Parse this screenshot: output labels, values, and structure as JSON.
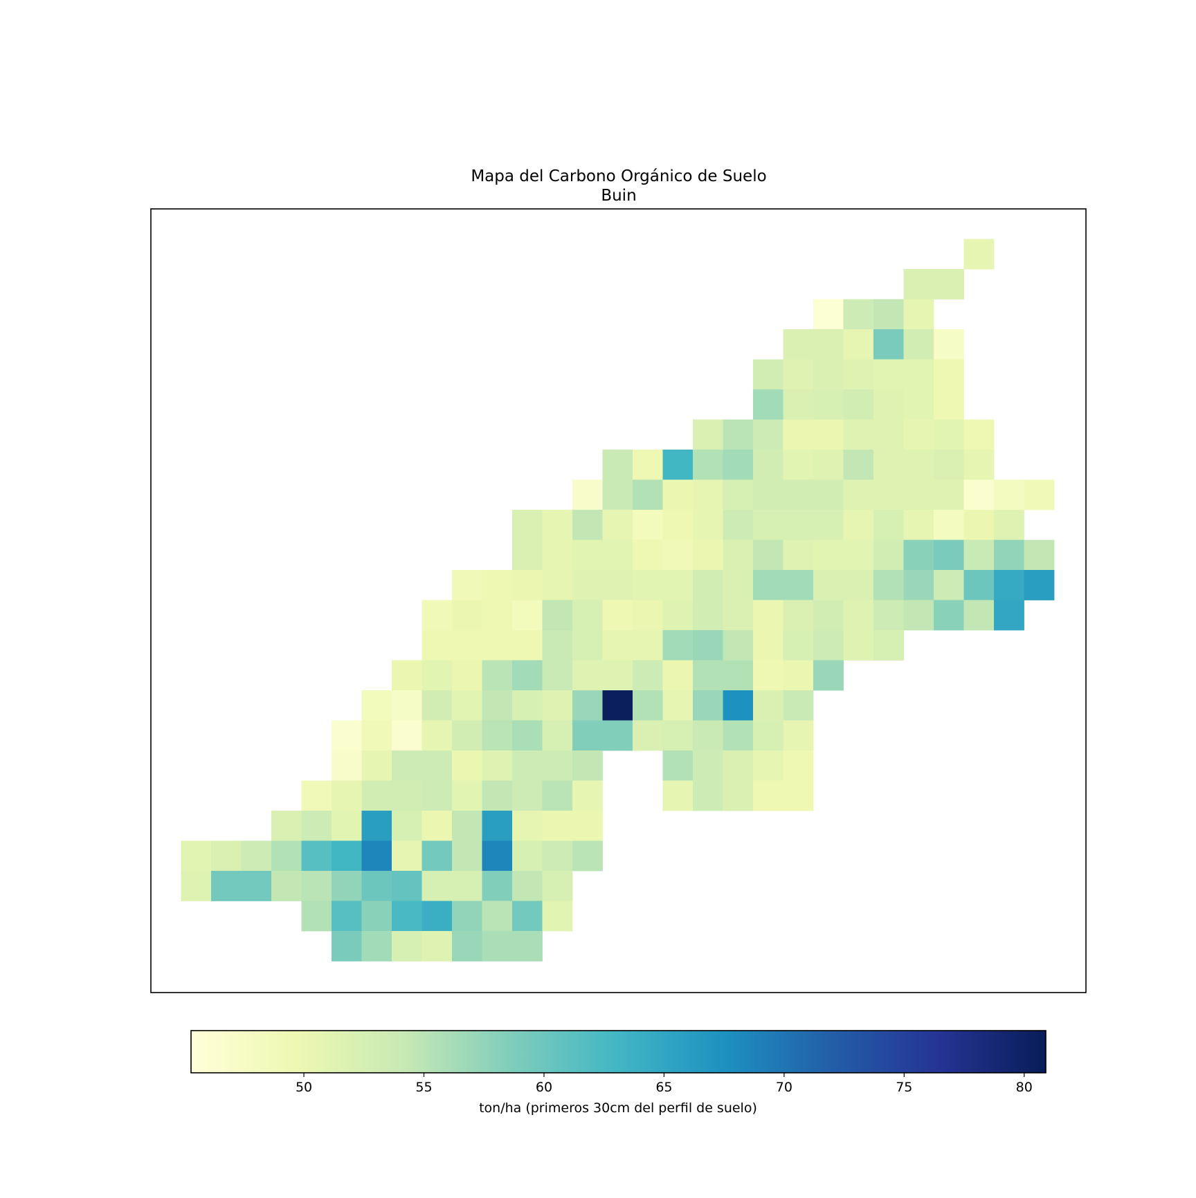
{
  "chart_data": {
    "type": "heatmap",
    "title": "Mapa del Carbono Orgánico de Suelo",
    "subtitle": "Buin",
    "colorbar": {
      "label": "ton/ha (primeros 30cm del perfil de suelo)",
      "range": [
        45.3,
        80.9
      ],
      "ticks": [
        50,
        55,
        60,
        65,
        70,
        75,
        80
      ],
      "orientation": "horizontal",
      "placement": "bottom",
      "colormap": "YlGnBu"
    },
    "grid": {
      "columns": 29,
      "rows": 25,
      "axes_visible": false,
      "note_null": "null = no data (transparent)"
    },
    "values": [
      [
        null,
        null,
        null,
        null,
        null,
        null,
        null,
        null,
        null,
        null,
        null,
        null,
        null,
        null,
        null,
        null,
        null,
        null,
        null,
        null,
        null,
        null,
        null,
        null,
        null,
        null,
        null,
        null,
        null
      ],
      [
        null,
        null,
        null,
        null,
        null,
        null,
        null,
        null,
        null,
        null,
        null,
        null,
        null,
        null,
        null,
        null,
        null,
        null,
        null,
        null,
        null,
        null,
        null,
        null,
        null,
        null,
        50.5,
        null,
        null
      ],
      [
        null,
        null,
        null,
        null,
        null,
        null,
        null,
        null,
        null,
        null,
        null,
        null,
        null,
        null,
        null,
        null,
        null,
        null,
        null,
        null,
        null,
        null,
        null,
        null,
        52,
        52,
        null,
        null,
        null
      ],
      [
        null,
        null,
        null,
        null,
        null,
        null,
        null,
        null,
        null,
        null,
        null,
        null,
        null,
        null,
        null,
        null,
        null,
        null,
        null,
        null,
        null,
        46,
        53.5,
        54.5,
        50.5,
        null,
        null,
        null,
        null
      ],
      [
        null,
        null,
        null,
        null,
        null,
        null,
        null,
        null,
        null,
        null,
        null,
        null,
        null,
        null,
        null,
        null,
        null,
        null,
        null,
        null,
        52,
        52,
        50.5,
        59,
        53,
        47.5,
        null,
        null,
        null
      ],
      [
        null,
        null,
        null,
        null,
        null,
        null,
        null,
        null,
        null,
        null,
        null,
        null,
        null,
        null,
        null,
        null,
        null,
        null,
        null,
        53,
        51.5,
        52,
        51.5,
        51,
        51,
        49.5,
        null,
        null,
        null
      ],
      [
        null,
        null,
        null,
        null,
        null,
        null,
        null,
        null,
        null,
        null,
        null,
        null,
        null,
        null,
        null,
        null,
        null,
        null,
        null,
        56.5,
        52,
        52.5,
        53,
        51.5,
        51,
        49.5,
        null,
        null,
        null
      ],
      [
        null,
        null,
        null,
        null,
        null,
        null,
        null,
        null,
        null,
        null,
        null,
        null,
        null,
        null,
        null,
        null,
        null,
        52,
        55,
        53.5,
        50,
        50,
        51.5,
        51.5,
        50.5,
        51,
        49.5,
        null,
        null
      ],
      [
        null,
        null,
        null,
        null,
        null,
        null,
        null,
        null,
        null,
        null,
        null,
        null,
        null,
        null,
        54,
        49.5,
        63,
        55.5,
        56.5,
        53,
        51,
        51.5,
        54.5,
        51.5,
        51.5,
        52,
        50.5,
        null,
        null
      ],
      [
        null,
        null,
        null,
        null,
        null,
        null,
        null,
        null,
        null,
        null,
        null,
        null,
        null,
        47,
        54,
        55.5,
        50,
        50.5,
        52.5,
        53,
        53,
        53,
        51.5,
        51.5,
        51.5,
        51.5,
        46.5,
        48,
        49
      ],
      [
        null,
        null,
        null,
        null,
        null,
        null,
        null,
        null,
        null,
        null,
        null,
        52,
        50.5,
        54.5,
        50.5,
        48.5,
        49.5,
        50.5,
        53.5,
        52.5,
        52.5,
        52.5,
        50.5,
        52.5,
        50.5,
        48,
        50,
        51.5,
        null
      ],
      [
        null,
        null,
        null,
        null,
        null,
        null,
        null,
        null,
        null,
        null,
        null,
        52,
        50.5,
        51,
        51,
        49.5,
        49,
        50,
        52,
        54.5,
        51.5,
        51,
        51,
        53,
        58,
        59,
        54,
        57.5,
        54.5
      ],
      [
        null,
        null,
        null,
        null,
        null,
        null,
        null,
        null,
        null,
        49,
        49.5,
        50,
        50.5,
        51.5,
        51.5,
        51,
        51,
        53,
        52,
        56.5,
        56.5,
        52,
        52,
        55.5,
        57,
        53.5,
        60,
        64.5,
        66
      ],
      [
        null,
        null,
        null,
        null,
        null,
        null,
        null,
        null,
        49,
        50,
        49.5,
        48.5,
        54.5,
        52.5,
        49.5,
        50,
        51.5,
        53,
        52,
        50,
        52,
        53,
        51.5,
        53.5,
        54.5,
        58,
        54.5,
        65,
        null
      ],
      [
        null,
        null,
        null,
        null,
        null,
        null,
        null,
        null,
        49.5,
        49.5,
        49.5,
        49.5,
        54,
        52.5,
        50.5,
        50.5,
        56.5,
        57,
        54.5,
        50,
        52.5,
        53.5,
        51.5,
        52.5,
        null,
        null,
        null,
        null,
        null
      ],
      [
        null,
        null,
        null,
        null,
        null,
        null,
        null,
        50,
        51,
        50,
        55,
        56.5,
        54,
        51.5,
        51.5,
        53.5,
        50,
        55.5,
        55.5,
        49.5,
        50,
        57,
        null,
        null,
        null,
        null,
        null,
        null,
        null
      ],
      [
        null,
        null,
        null,
        null,
        null,
        null,
        48.5,
        47.5,
        53,
        51,
        54.5,
        52.5,
        51.5,
        57,
        80.5,
        55.5,
        50.5,
        57,
        67.5,
        52,
        54,
        null,
        null,
        null,
        null,
        null,
        null,
        null,
        null
      ],
      [
        null,
        null,
        null,
        null,
        null,
        46.5,
        49,
        46.5,
        50.5,
        53,
        55,
        56,
        52.5,
        58.5,
        58.5,
        52,
        52.5,
        54,
        55.5,
        52.5,
        50.5,
        null,
        null,
        null,
        null,
        null,
        null,
        null,
        null
      ],
      [
        null,
        null,
        null,
        null,
        null,
        47,
        50.5,
        53.5,
        53.5,
        50,
        51.5,
        53.5,
        53.5,
        54.5,
        null,
        null,
        55.5,
        53.5,
        52,
        50.5,
        49.5,
        null,
        null,
        null,
        null,
        null,
        null,
        null,
        null
      ],
      [
        null,
        null,
        null,
        null,
        49,
        50.5,
        53,
        53,
        53.5,
        51,
        54.5,
        53.5,
        55,
        50.5,
        null,
        null,
        50.5,
        53.5,
        52,
        49.5,
        49.5,
        null,
        null,
        null,
        null,
        null,
        null,
        null,
        null
      ],
      [
        null,
        null,
        null,
        52,
        53.5,
        51,
        66,
        52.5,
        50,
        54.5,
        66,
        50.5,
        50,
        50,
        null,
        null,
        null,
        null,
        null,
        null,
        null,
        null,
        null,
        null,
        null,
        null,
        null,
        null,
        null
      ],
      [
        51,
        52,
        53.5,
        55.5,
        61.5,
        63,
        68.5,
        50.5,
        59.5,
        54.5,
        68.5,
        52.5,
        53.5,
        55,
        null,
        null,
        null,
        null,
        null,
        null,
        null,
        null,
        null,
        null,
        null,
        null,
        null,
        null,
        null
      ],
      [
        51.5,
        59.5,
        59.5,
        54.5,
        55,
        57.5,
        60,
        60.5,
        52.5,
        52.5,
        58.5,
        54.5,
        52.5,
        null,
        null,
        null,
        null,
        null,
        null,
        null,
        null,
        null,
        null,
        null,
        null,
        null,
        null,
        null,
        null
      ],
      [
        null,
        null,
        null,
        null,
        55.5,
        61.5,
        58,
        62.5,
        64,
        57.5,
        55,
        59.5,
        51,
        null,
        null,
        null,
        null,
        null,
        null,
        null,
        null,
        null,
        null,
        null,
        null,
        null,
        null,
        null,
        null
      ],
      [
        null,
        null,
        null,
        null,
        null,
        59,
        56.5,
        52.5,
        51.5,
        57,
        56,
        56,
        null,
        null,
        null,
        null,
        null,
        null,
        null,
        null,
        null,
        null,
        null,
        null,
        null,
        null,
        null,
        null,
        null
      ]
    ]
  }
}
